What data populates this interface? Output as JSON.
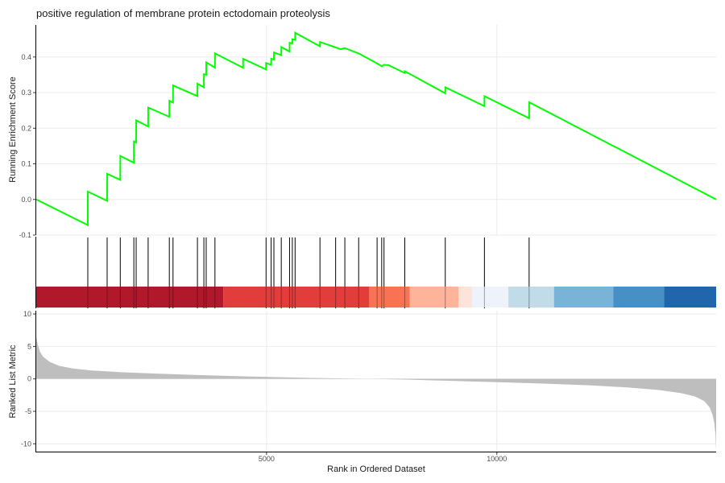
{
  "chart_data": [
    {
      "panel": "running_enrichment",
      "type": "line",
      "title": "positive regulation of membrane protein ectodomain proteolysis",
      "ylabel": "Running Enrichment Score",
      "xlabel": "",
      "xlim": [
        1,
        14760
      ],
      "ylim": [
        -0.1,
        0.49
      ],
      "yticks": [
        -0.1,
        0.0,
        0.1,
        0.2,
        0.3,
        0.4
      ],
      "ytick_labels": [
        "-0.1",
        "0.0",
        "0.1",
        "0.2",
        "0.3",
        "0.4"
      ],
      "grid": true,
      "series": [
        {
          "color": "#00ff00",
          "points": [
            [
              1,
              0.0
            ],
            [
              1120,
              -0.072
            ],
            [
              1121,
              0.022
            ],
            [
              1540,
              -0.004
            ],
            [
              1541,
              0.072
            ],
            [
              1825,
              0.055
            ],
            [
              1826,
              0.122
            ],
            [
              2120,
              0.103
            ],
            [
              2121,
              0.163
            ],
            [
              2170,
              0.16
            ],
            [
              2171,
              0.222
            ],
            [
              2430,
              0.205
            ],
            [
              2431,
              0.258
            ],
            [
              2890,
              0.232
            ],
            [
              2891,
              0.277
            ],
            [
              2970,
              0.272
            ],
            [
              2971,
              0.32
            ],
            [
              3500,
              0.29
            ],
            [
              3501,
              0.325
            ],
            [
              3640,
              0.315
            ],
            [
              3641,
              0.352
            ],
            [
              3690,
              0.35
            ],
            [
              3691,
              0.385
            ],
            [
              3880,
              0.37
            ],
            [
              3881,
              0.41
            ],
            [
              4490,
              0.37
            ],
            [
              4491,
              0.395
            ],
            [
              4990,
              0.365
            ],
            [
              4991,
              0.383
            ],
            [
              5100,
              0.378
            ],
            [
              5101,
              0.395
            ],
            [
              5160,
              0.393
            ],
            [
              5161,
              0.413
            ],
            [
              5320,
              0.405
            ],
            [
              5321,
              0.428
            ],
            [
              5500,
              0.415
            ],
            [
              5501,
              0.44
            ],
            [
              5560,
              0.438
            ],
            [
              5561,
              0.45
            ],
            [
              5620,
              0.448
            ],
            [
              5621,
              0.468
            ],
            [
              6160,
              0.43
            ],
            [
              6161,
              0.442
            ],
            [
              6500,
              0.427
            ],
            [
              6600,
              0.422
            ],
            [
              6700,
              0.425
            ],
            [
              7000,
              0.41
            ],
            [
              7400,
              0.382
            ],
            [
              7500,
              0.374
            ],
            [
              7550,
              0.378
            ],
            [
              7650,
              0.377
            ],
            [
              8000,
              0.355
            ],
            [
              8001,
              0.36
            ],
            [
              8880,
              0.298
            ],
            [
              8881,
              0.315
            ],
            [
              9730,
              0.262
            ],
            [
              9731,
              0.29
            ],
            [
              10700,
              0.228
            ],
            [
              10701,
              0.273
            ],
            [
              14760,
              0.0
            ]
          ]
        }
      ]
    },
    {
      "panel": "hits",
      "type": "rug",
      "color": "#000000",
      "positions": [
        1120,
        1540,
        1825,
        2120,
        2170,
        2430,
        2890,
        2970,
        3500,
        3640,
        3690,
        3880,
        4990,
        5100,
        5160,
        5320,
        5500,
        5560,
        5620,
        6160,
        6500,
        6700,
        7000,
        7400,
        7500,
        7550,
        8001,
        8880,
        9730,
        10700
      ],
      "color_bands": [
        {
          "start": 1,
          "end": 4060,
          "color": "#b2182b"
        },
        {
          "start": 4060,
          "end": 7230,
          "color": "#e23c3b"
        },
        {
          "start": 7230,
          "end": 8110,
          "color": "#f87253"
        },
        {
          "start": 8110,
          "end": 9170,
          "color": "#fdb49a"
        },
        {
          "start": 9170,
          "end": 9460,
          "color": "#fde4db"
        },
        {
          "start": 9460,
          "end": 10250,
          "color": "#eef3fb"
        },
        {
          "start": 10250,
          "end": 11240,
          "color": "#c1dbe9"
        },
        {
          "start": 11240,
          "end": 12530,
          "color": "#79b3d8"
        },
        {
          "start": 12530,
          "end": 13630,
          "color": "#4690c6"
        },
        {
          "start": 13630,
          "end": 14760,
          "color": "#2166ac"
        }
      ]
    },
    {
      "panel": "ranked_list",
      "type": "area",
      "ylabel": "Ranked List Metric",
      "xlabel": "Rank in Ordered Dataset",
      "xlim": [
        1,
        14760
      ],
      "ylim": [
        -11.2,
        10.5
      ],
      "xticks": [
        5000,
        10000
      ],
      "xtick_labels": [
        "5000",
        "10000"
      ],
      "yticks": [
        10,
        5,
        0,
        -5,
        -10
      ],
      "ytick_labels": [
        "10",
        "5",
        "0",
        "-5",
        "-10"
      ],
      "grid": true,
      "fill_color": "#bebebe",
      "series": [
        {
          "points": [
            [
              1,
              6.5
            ],
            [
              30,
              5.4
            ],
            [
              80,
              4.2
            ],
            [
              150,
              3.4
            ],
            [
              300,
              2.6
            ],
            [
              500,
              2.0
            ],
            [
              800,
              1.6
            ],
            [
              1200,
              1.3
            ],
            [
              1800,
              1.05
            ],
            [
              2500,
              0.85
            ],
            [
              3500,
              0.6
            ],
            [
              4500,
              0.4
            ],
            [
              5500,
              0.22
            ],
            [
              6500,
              0.08
            ],
            [
              7200,
              0.0
            ],
            [
              8000,
              -0.1
            ],
            [
              9000,
              -0.3
            ],
            [
              10000,
              -0.5
            ],
            [
              11000,
              -0.72
            ],
            [
              12000,
              -0.98
            ],
            [
              12800,
              -1.3
            ],
            [
              13500,
              -1.7
            ],
            [
              14000,
              -2.2
            ],
            [
              14300,
              -2.7
            ],
            [
              14500,
              -3.4
            ],
            [
              14620,
              -4.4
            ],
            [
              14680,
              -5.5
            ],
            [
              14720,
              -6.8
            ],
            [
              14745,
              -8.5
            ],
            [
              14760,
              -11.0
            ]
          ]
        }
      ]
    }
  ]
}
